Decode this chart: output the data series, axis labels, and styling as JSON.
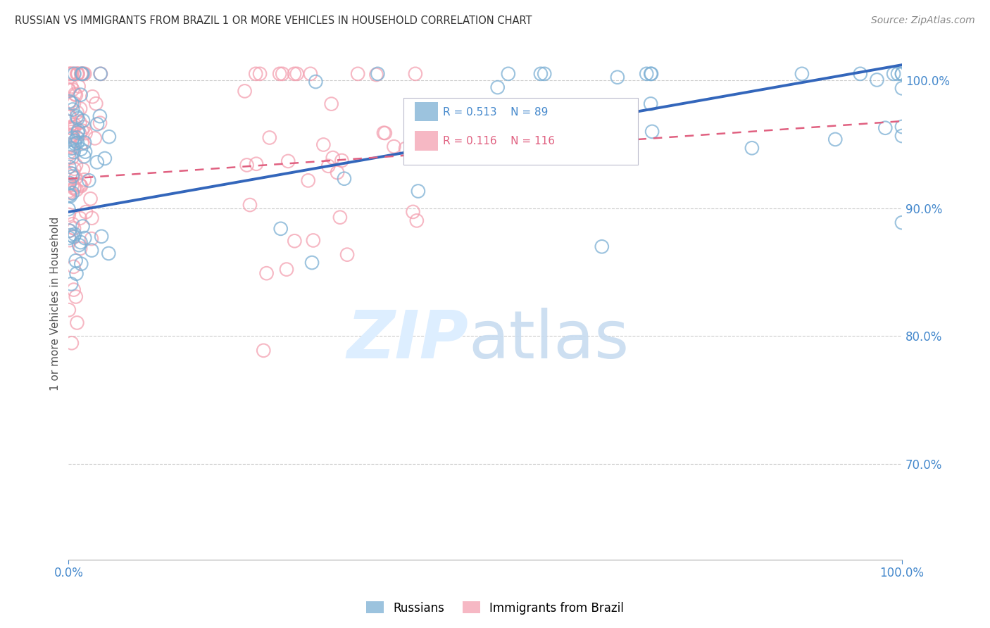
{
  "title": "RUSSIAN VS IMMIGRANTS FROM BRAZIL 1 OR MORE VEHICLES IN HOUSEHOLD CORRELATION CHART",
  "source": "Source: ZipAtlas.com",
  "ylabel": "1 or more Vehicles in Household",
  "xlim": [
    0,
    1.0
  ],
  "ylim": [
    0.625,
    1.025
  ],
  "legend_russians": "Russians",
  "legend_brazil": "Immigrants from Brazil",
  "r_russians": 0.513,
  "n_russians": 89,
  "r_brazil": 0.116,
  "n_brazil": 116,
  "blue_color": "#7BAFD4",
  "pink_color": "#F4A0B0",
  "blue_line_color": "#3366BB",
  "pink_line_color": "#E06080",
  "title_color": "#333333",
  "tick_color": "#4488CC",
  "ytick_values": [
    0.7,
    0.8,
    0.9,
    1.0
  ],
  "ytick_labels": [
    "70.0%",
    "80.0%",
    "90.0%",
    "100.0%"
  ]
}
